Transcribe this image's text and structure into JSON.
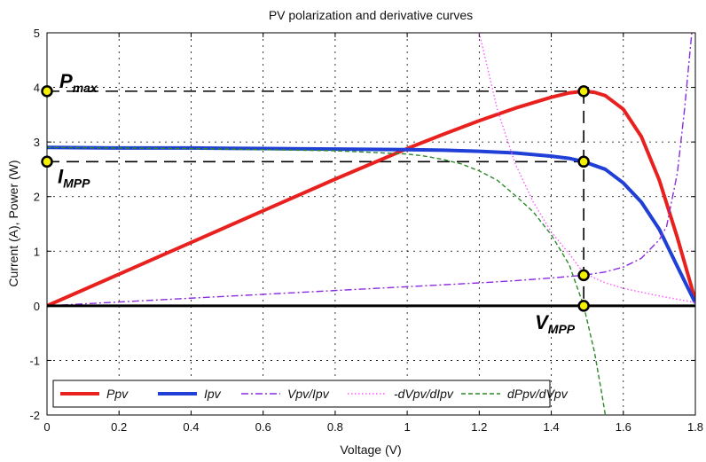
{
  "chart_data": {
    "type": "line",
    "title": "PV polarization and derivative curves",
    "xlabel": "Voltage (V)",
    "ylabel": "Current (A), Power (W)",
    "xlim": [
      0,
      1.8
    ],
    "ylim": [
      -2,
      5
    ],
    "xticks": [
      "0",
      "0.2",
      "0.4",
      "0.6",
      "0.8",
      "1",
      "1.2",
      "1.4",
      "1.6",
      "1.8"
    ],
    "yticks": [
      "-2",
      "-1",
      "0",
      "1",
      "2",
      "3",
      "4",
      "5"
    ],
    "grid": true,
    "legend_position": "bottom",
    "series": [
      {
        "name": "Ppv",
        "color": "#e8201e",
        "style": "solid",
        "x": [
          0,
          0.2,
          0.4,
          0.6,
          0.8,
          0.9,
          1.0,
          1.1,
          1.2,
          1.3,
          1.4,
          1.45,
          1.49,
          1.52,
          1.55,
          1.6,
          1.65,
          1.7,
          1.75,
          1.8
        ],
        "y": [
          0,
          0.58,
          1.16,
          1.74,
          2.32,
          2.6,
          2.88,
          3.14,
          3.39,
          3.62,
          3.82,
          3.9,
          3.93,
          3.91,
          3.85,
          3.6,
          3.1,
          2.3,
          1.25,
          0.1
        ]
      },
      {
        "name": "Ipv",
        "color": "#1f3fd6",
        "style": "solid",
        "x": [
          0,
          0.2,
          0.4,
          0.6,
          0.8,
          1.0,
          1.1,
          1.2,
          1.3,
          1.4,
          1.45,
          1.49,
          1.55,
          1.6,
          1.65,
          1.7,
          1.75,
          1.8
        ],
        "y": [
          2.9,
          2.89,
          2.89,
          2.88,
          2.87,
          2.86,
          2.85,
          2.83,
          2.8,
          2.74,
          2.7,
          2.64,
          2.5,
          2.25,
          1.9,
          1.4,
          0.72,
          0.05
        ]
      },
      {
        "name": "Vpv/Ipv",
        "color": "#8a2be2",
        "style": "dashdot",
        "x": [
          0,
          0.2,
          0.4,
          0.6,
          0.8,
          1.0,
          1.2,
          1.3,
          1.4,
          1.49,
          1.55,
          1.6,
          1.65,
          1.7,
          1.72,
          1.75,
          1.77,
          1.79
        ],
        "y": [
          0,
          0.07,
          0.14,
          0.21,
          0.28,
          0.35,
          0.42,
          0.46,
          0.51,
          0.56,
          0.62,
          0.71,
          0.87,
          1.21,
          1.45,
          2.43,
          3.6,
          5.0
        ]
      },
      {
        "name": "-dVpv/dIpv",
        "color": "#ff55ff",
        "style": "dotted",
        "x": [
          1.2,
          1.25,
          1.3,
          1.35,
          1.4,
          1.45,
          1.49,
          1.55,
          1.6,
          1.65,
          1.7,
          1.75,
          1.8
        ],
        "y": [
          5.0,
          3.6,
          2.6,
          1.9,
          1.35,
          0.95,
          0.6,
          0.42,
          0.32,
          0.25,
          0.18,
          0.12,
          0.06
        ]
      },
      {
        "name": "dPpv/dVpv",
        "color": "#2a8a2a",
        "style": "dashed",
        "x": [
          0,
          0.2,
          0.4,
          0.6,
          0.8,
          1.0,
          1.05,
          1.1,
          1.15,
          1.2,
          1.25,
          1.3,
          1.35,
          1.4,
          1.45,
          1.49,
          1.52,
          1.54,
          1.55
        ],
        "y": [
          2.9,
          2.89,
          2.88,
          2.86,
          2.84,
          2.78,
          2.74,
          2.68,
          2.6,
          2.47,
          2.3,
          2.02,
          1.72,
          1.3,
          0.75,
          0.0,
          -0.85,
          -1.6,
          -2.0
        ]
      },
      {
        "name": "zero line",
        "color": "#000000",
        "style": "solid",
        "x": [
          0,
          1.8
        ],
        "y": [
          0,
          0
        ]
      }
    ],
    "annotations": [
      {
        "main": "P",
        "sub": "max",
        "x": 0,
        "y": 3.93
      },
      {
        "main": "I",
        "sub": "MPP",
        "x": 0,
        "y": 2.64
      },
      {
        "main": "V",
        "sub": "MPP",
        "x": 1.49,
        "y": 0
      }
    ],
    "markers": [
      {
        "x": 0,
        "y": 3.93
      },
      {
        "x": 0,
        "y": 2.64
      },
      {
        "x": 1.49,
        "y": 3.93
      },
      {
        "x": 1.49,
        "y": 2.64
      },
      {
        "x": 1.49,
        "y": 0.56
      },
      {
        "x": 1.49,
        "y": 0
      }
    ],
    "guides": [
      {
        "x1": 0,
        "y1": 3.93,
        "x2": 1.49,
        "y2": 3.93
      },
      {
        "x1": 0,
        "y1": 2.64,
        "x2": 1.49,
        "y2": 2.64
      },
      {
        "x1": 1.49,
        "y1": 3.93,
        "x2": 1.49,
        "y2": 0
      }
    ]
  }
}
